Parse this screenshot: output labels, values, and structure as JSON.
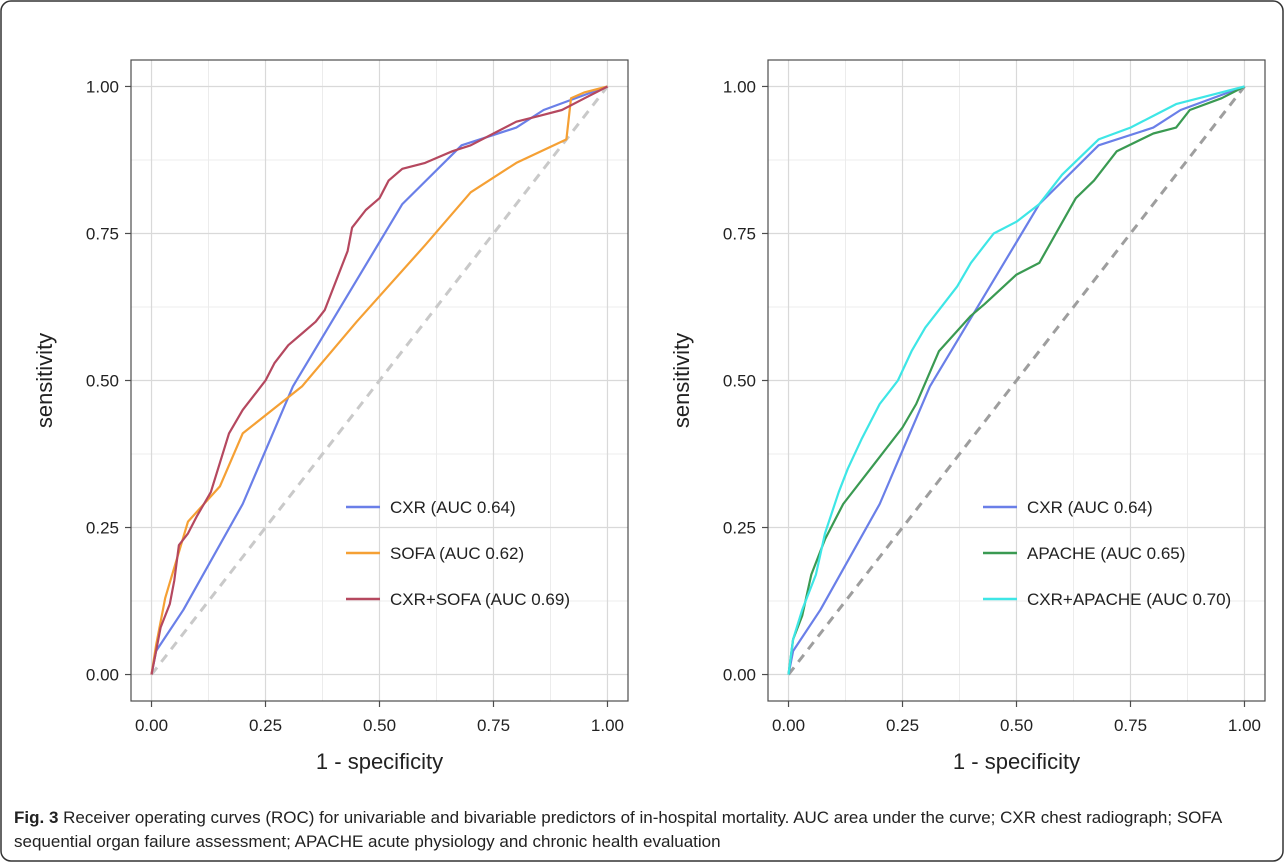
{
  "figure": {
    "caption_label": "Fig. 3",
    "caption_text": " Receiver operating curves (ROC) for univariable and bivariable predictors of in-hospital mortality. AUC area under the curve; CXR chest radiograph; SOFA sequential organ failure assessment; APACHE acute physiology and chronic health evaluation",
    "colors": {
      "frame": "#333333",
      "grid": "#d9d9d9",
      "panel_border": "#4d4d4d",
      "text": "#222222"
    }
  },
  "chart_data": [
    {
      "type": "line",
      "xlabel": "1 - specificity",
      "ylabel": "sensitivity",
      "xlim": [
        0,
        1
      ],
      "ylim": [
        0,
        1
      ],
      "xticks": [
        "0.00",
        "0.25",
        "0.50",
        "0.75",
        "1.00"
      ],
      "yticks": [
        "0.00",
        "0.25",
        "0.50",
        "0.75",
        "1.00"
      ],
      "grid": true,
      "legend_position": "bottom-right",
      "reference_line": {
        "color": "#c9c9c9",
        "dashed": true
      },
      "series": [
        {
          "name": "CXR (AUC 0.64)",
          "color": "#6a7fe8",
          "x": [
            0,
            0.01,
            0.07,
            0.2,
            0.31,
            0.55,
            0.68,
            0.8,
            0.86,
            1.0
          ],
          "y": [
            0,
            0.04,
            0.11,
            0.29,
            0.49,
            0.8,
            0.9,
            0.93,
            0.96,
            1.0
          ]
        },
        {
          "name": "SOFA (AUC 0.62)",
          "color": "#f5a034",
          "x": [
            0,
            0.01,
            0.03,
            0.08,
            0.15,
            0.2,
            0.33,
            0.45,
            0.6,
            0.7,
            0.8,
            0.91,
            0.92,
            0.95,
            1.0
          ],
          "y": [
            0,
            0.05,
            0.13,
            0.26,
            0.32,
            0.41,
            0.49,
            0.6,
            0.73,
            0.82,
            0.87,
            0.91,
            0.98,
            0.99,
            1.0
          ]
        },
        {
          "name": "CXR+SOFA (AUC 0.69)",
          "color": "#b5485f",
          "x": [
            0,
            0.01,
            0.02,
            0.04,
            0.05,
            0.06,
            0.08,
            0.1,
            0.13,
            0.15,
            0.17,
            0.2,
            0.23,
            0.25,
            0.27,
            0.3,
            0.33,
            0.36,
            0.38,
            0.4,
            0.43,
            0.44,
            0.45,
            0.47,
            0.5,
            0.52,
            0.55,
            0.6,
            0.63,
            0.66,
            0.7,
            0.75,
            0.8,
            0.85,
            0.9,
            0.95,
            1.0
          ],
          "y": [
            0,
            0.04,
            0.08,
            0.12,
            0.16,
            0.22,
            0.24,
            0.27,
            0.31,
            0.36,
            0.41,
            0.45,
            0.48,
            0.5,
            0.53,
            0.56,
            0.58,
            0.6,
            0.62,
            0.66,
            0.72,
            0.76,
            0.77,
            0.79,
            0.81,
            0.84,
            0.86,
            0.87,
            0.88,
            0.89,
            0.9,
            0.92,
            0.94,
            0.95,
            0.96,
            0.98,
            1.0
          ]
        }
      ]
    },
    {
      "type": "line",
      "xlabel": "1 - specificity",
      "ylabel": "sensitivity",
      "xlim": [
        0,
        1
      ],
      "ylim": [
        0,
        1
      ],
      "xticks": [
        "0.00",
        "0.25",
        "0.50",
        "0.75",
        "1.00"
      ],
      "yticks": [
        "0.00",
        "0.25",
        "0.50",
        "0.75",
        "1.00"
      ],
      "grid": true,
      "legend_position": "bottom-right",
      "reference_line": {
        "color": "#9e9e9e",
        "dashed": true
      },
      "series": [
        {
          "name": "CXR (AUC 0.64)",
          "color": "#6a7fe8",
          "x": [
            0,
            0.01,
            0.07,
            0.2,
            0.31,
            0.55,
            0.68,
            0.8,
            0.86,
            1.0
          ],
          "y": [
            0,
            0.04,
            0.11,
            0.29,
            0.49,
            0.8,
            0.9,
            0.93,
            0.96,
            1.0
          ]
        },
        {
          "name": "APACHE (AUC 0.65)",
          "color": "#3a9a52",
          "x": [
            0,
            0.01,
            0.03,
            0.05,
            0.08,
            0.12,
            0.18,
            0.2,
            0.25,
            0.28,
            0.33,
            0.4,
            0.43,
            0.5,
            0.55,
            0.63,
            0.67,
            0.72,
            0.8,
            0.85,
            0.88,
            0.95,
            1.0
          ],
          "y": [
            0,
            0.06,
            0.1,
            0.17,
            0.23,
            0.29,
            0.35,
            0.37,
            0.42,
            0.46,
            0.55,
            0.61,
            0.63,
            0.68,
            0.7,
            0.81,
            0.84,
            0.89,
            0.92,
            0.93,
            0.96,
            0.98,
            1.0
          ]
        },
        {
          "name": "CXR+APACHE (AUC 0.70)",
          "color": "#3ee6e6",
          "x": [
            0,
            0.01,
            0.03,
            0.06,
            0.08,
            0.11,
            0.13,
            0.16,
            0.2,
            0.22,
            0.24,
            0.27,
            0.3,
            0.33,
            0.37,
            0.4,
            0.43,
            0.45,
            0.5,
            0.55,
            0.6,
            0.68,
            0.75,
            0.8,
            0.85,
            0.9,
            0.95,
            1.0
          ],
          "y": [
            0,
            0.06,
            0.11,
            0.17,
            0.24,
            0.31,
            0.35,
            0.4,
            0.46,
            0.48,
            0.5,
            0.55,
            0.59,
            0.62,
            0.66,
            0.7,
            0.73,
            0.75,
            0.77,
            0.8,
            0.85,
            0.91,
            0.93,
            0.95,
            0.97,
            0.98,
            0.99,
            1.0
          ]
        }
      ]
    }
  ]
}
